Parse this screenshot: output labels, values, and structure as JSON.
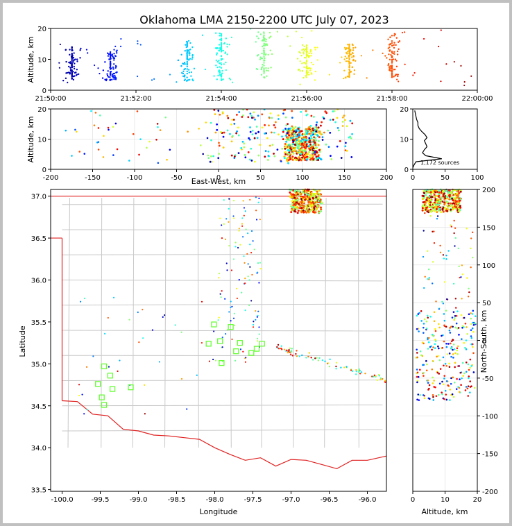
{
  "title": "Oklahoma LMA 2150-2200 UTC July 07, 2023",
  "chart_data": [
    {
      "panel": "altitude-time",
      "type": "scatter",
      "ylabel": "Altitude, km",
      "ylim": [
        0,
        20
      ],
      "y_ticks": [
        "0",
        "10",
        "20"
      ],
      "x_ticks": [
        "21:50:00",
        "21:52:00",
        "21:54:00",
        "21:56:00",
        "21:58:00",
        "22:00:00"
      ],
      "xlim_minutes": [
        0,
        10
      ],
      "color_scale": "time (blue to red)",
      "clusters": [
        {
          "t": 0.5,
          "alt": [
            3,
            14
          ]
        },
        {
          "t": 1.4,
          "alt": [
            3,
            13
          ]
        },
        {
          "t": 3.2,
          "alt": [
            3,
            16
          ]
        },
        {
          "t": 4.0,
          "alt": [
            3,
            19
          ]
        },
        {
          "t": 5.0,
          "alt": [
            4,
            19
          ]
        },
        {
          "t": 6.0,
          "alt": [
            4,
            15
          ]
        },
        {
          "t": 7.0,
          "alt": [
            4,
            15
          ]
        },
        {
          "t": 8.0,
          "alt": [
            4,
            18
          ]
        }
      ]
    },
    {
      "panel": "altitude-eastwest",
      "type": "scatter",
      "ylabel": "Altitude, km",
      "xlabel": "East-West, km",
      "xlim": [
        -200,
        200
      ],
      "ylim": [
        0,
        20
      ],
      "x_ticks": [
        "-200",
        "-150",
        "-100",
        "-50",
        "0",
        "50",
        "100",
        "150",
        "200"
      ],
      "y_ticks": [
        "0",
        "10",
        "20"
      ],
      "main_cluster_x": [
        80,
        120
      ],
      "main_cluster_alt": [
        3,
        14
      ]
    },
    {
      "panel": "altitude-histogram",
      "type": "line",
      "xlim": [
        0,
        100
      ],
      "ylim": [
        0,
        20
      ],
      "x_ticks": [
        "0",
        "50",
        "100"
      ],
      "y_ticks": [
        "0",
        "10",
        "20"
      ],
      "annotation": "1,172 sources",
      "counts_by_km": [
        0,
        2,
        5,
        45,
        20,
        15,
        18,
        22,
        20,
        18,
        22,
        19,
        14,
        10,
        8,
        8,
        6,
        5,
        4,
        3
      ]
    },
    {
      "panel": "plan-view",
      "type": "scatter",
      "xlabel": "Longitude",
      "ylabel": "Latitude",
      "xlim": [
        -100.15,
        -95.75
      ],
      "ylim": [
        33.48,
        37.08
      ],
      "x_ticks": [
        "-100.0",
        "-99.5",
        "-99.0",
        "-98.5",
        "-98.0",
        "-97.5",
        "-97.0",
        "-96.5",
        "-96.0"
      ],
      "y_ticks": [
        "33.5",
        "34.0",
        "34.5",
        "35.0",
        "35.5",
        "36.0",
        "36.5",
        "37.0"
      ],
      "stations": [
        [
          -99.53,
          34.76
        ],
        [
          -99.48,
          34.6
        ],
        [
          -99.45,
          34.51
        ],
        [
          -99.45,
          34.97
        ],
        [
          -99.37,
          34.86
        ],
        [
          -99.34,
          34.7
        ],
        [
          -99.1,
          34.72
        ],
        [
          -98.08,
          35.24
        ],
        [
          -98.01,
          35.47
        ],
        [
          -97.93,
          35.27
        ],
        [
          -97.91,
          35.01
        ],
        [
          -97.79,
          35.44
        ],
        [
          -97.72,
          35.15
        ],
        [
          -97.67,
          35.25
        ],
        [
          -97.52,
          35.13
        ],
        [
          -97.45,
          35.18
        ],
        [
          -97.38,
          35.24
        ]
      ],
      "main_cluster": {
        "lon": [
          -97.0,
          -96.6
        ],
        "lat": [
          36.8,
          37.08
        ]
      }
    },
    {
      "panel": "altitude-northsouth",
      "type": "scatter",
      "xlabel": "Altitude, km",
      "ylabel": "North-South, km",
      "xlim": [
        0,
        20
      ],
      "ylim": [
        -200,
        200
      ],
      "x_ticks": [
        "0",
        "10",
        "20"
      ],
      "y_ticks": [
        "-200",
        "-150",
        "-100",
        "-50",
        "0",
        "50",
        "100",
        "150",
        "200"
      ],
      "main_cluster_ns": [
        170,
        200
      ],
      "main_cluster_alt": [
        3,
        15
      ]
    }
  ]
}
